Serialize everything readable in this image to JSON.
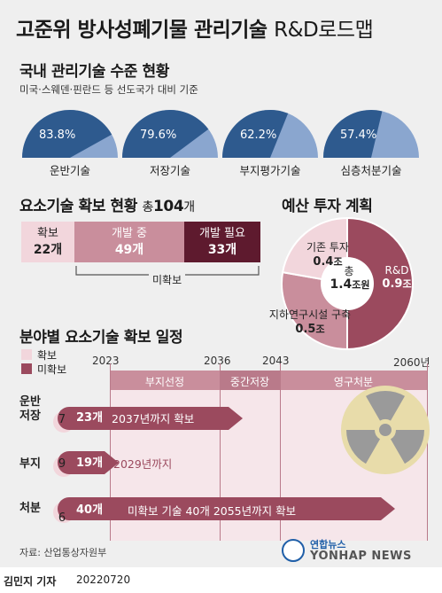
{
  "title": {
    "main": "고준위 방사성폐기물 관리기술",
    "en": "R&D로드맵"
  },
  "domestic": {
    "heading": "국내 관리기술 수준 현황",
    "subtitle": "미국·스웨덴·핀란드 등 선도국가 대비 기준",
    "gauges": [
      {
        "pct_label": "83.8%",
        "value": 83.8,
        "label": "운반기술"
      },
      {
        "pct_label": "79.6%",
        "value": 79.6,
        "label": "저장기술"
      },
      {
        "pct_label": "62.2%",
        "value": 62.2,
        "label": "부지평가기술"
      },
      {
        "pct_label": "57.4%",
        "value": 57.4,
        "label": "심층처분기술"
      }
    ]
  },
  "status": {
    "heading": "요소기술 확보 현황",
    "total_prefix": "총",
    "total_value": "104",
    "total_unit": "개",
    "segments": [
      {
        "name": "확보",
        "count": "22개",
        "value": 22
      },
      {
        "name": "개발 중",
        "count": "49개",
        "value": 49
      },
      {
        "name": "개발 필요",
        "count": "33개",
        "value": 33
      }
    ],
    "unsecured_label": "미확보"
  },
  "budget": {
    "heading": "예산 투자 계획",
    "total_label": "총",
    "total_value": "1.4",
    "total_unit": "조원",
    "slices": [
      {
        "name": "R&D",
        "amount": "0.9",
        "unit": "조",
        "value": 0.9,
        "color": "#9b4a5e"
      },
      {
        "name": "지하연구시설 구축",
        "amount": "0.5",
        "unit": "조",
        "value": 0.5,
        "color": "#c98e9c"
      },
      {
        "name": "기존 투자",
        "amount": "0.4",
        "unit": "조",
        "value": 0.4,
        "color": "#f2d6dc"
      }
    ]
  },
  "schedule": {
    "heading": "분야별 요소기술 확보 일정",
    "legend": [
      {
        "label": "확보",
        "color": "#f2d6dc"
      },
      {
        "label": "미확보",
        "color": "#9b4a5e"
      }
    ],
    "years": [
      "2023",
      "2036",
      "2043",
      "2060년"
    ],
    "phases": [
      "부지선정",
      "중간저장",
      "영구처분"
    ],
    "rows": [
      {
        "label_line1": "운반",
        "label_line2": "저장",
        "secured": "7",
        "unsecured": "23개",
        "note": "2037년까지 확보"
      },
      {
        "label_line1": "부지",
        "label_line2": "",
        "secured": "9",
        "unsecured": "19개",
        "note": "2029년까지"
      },
      {
        "label_line1": "처분",
        "label_line2": "",
        "secured": "6",
        "unsecured": "40개",
        "note": "미확보 기술 40개 2055년까지 확보"
      }
    ]
  },
  "source": "자료: 산업통상자원부",
  "logo": {
    "korean": "연합뉴스",
    "english": "YONHAP NEWS"
  },
  "credit": {
    "reporter": "김민지 기자",
    "date": "20220720"
  },
  "colors": {
    "navy": "#2e5a8e",
    "light_blue": "#8aa6cf",
    "maroon": "#5e1a2e",
    "mid_pink": "#c98e9c",
    "pale_pink": "#f2d6dc",
    "arrow": "#9b4a5e"
  }
}
